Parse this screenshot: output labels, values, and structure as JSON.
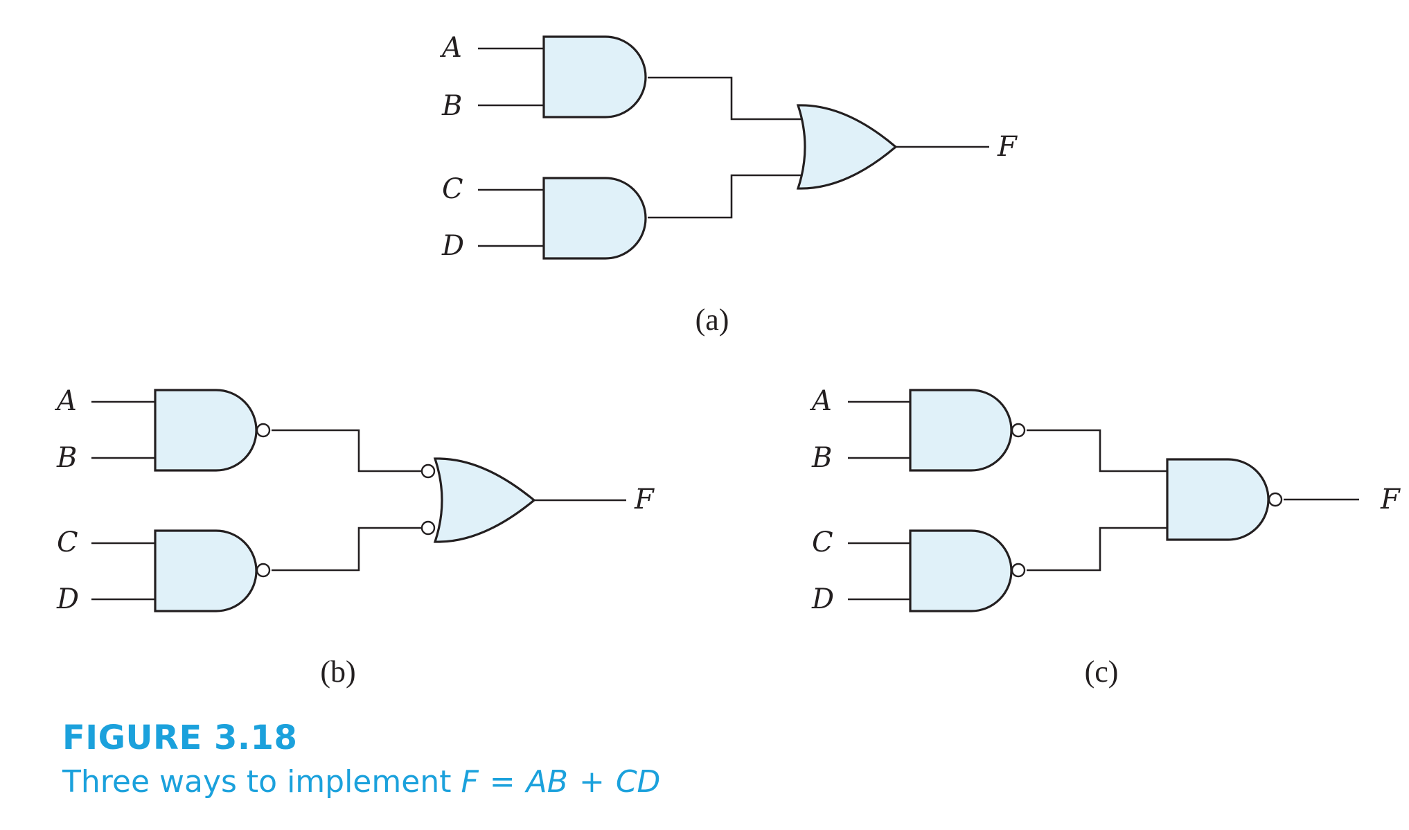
{
  "figure": {
    "labels": {
      "a": {
        "inputs": [
          "A",
          "B",
          "C",
          "D"
        ],
        "output": "F",
        "subcaption": "(a)"
      },
      "b": {
        "inputs": [
          "A",
          "B",
          "C",
          "D"
        ],
        "output": "F",
        "subcaption": "(b)"
      },
      "c": {
        "inputs": [
          "A",
          "B",
          "C",
          "D"
        ],
        "output": "F",
        "subcaption": "(c)"
      }
    },
    "colors": {
      "gate_fill": "#e0f1f9",
      "line": "#231f20",
      "caption": "#1ba1dc"
    }
  },
  "caption": {
    "number": "FIGURE 3.18",
    "text": "Three ways to implement",
    "lhs": "F",
    "eq_sign": "=",
    "term1": "AB",
    "plus": "+",
    "term2": "CD"
  }
}
